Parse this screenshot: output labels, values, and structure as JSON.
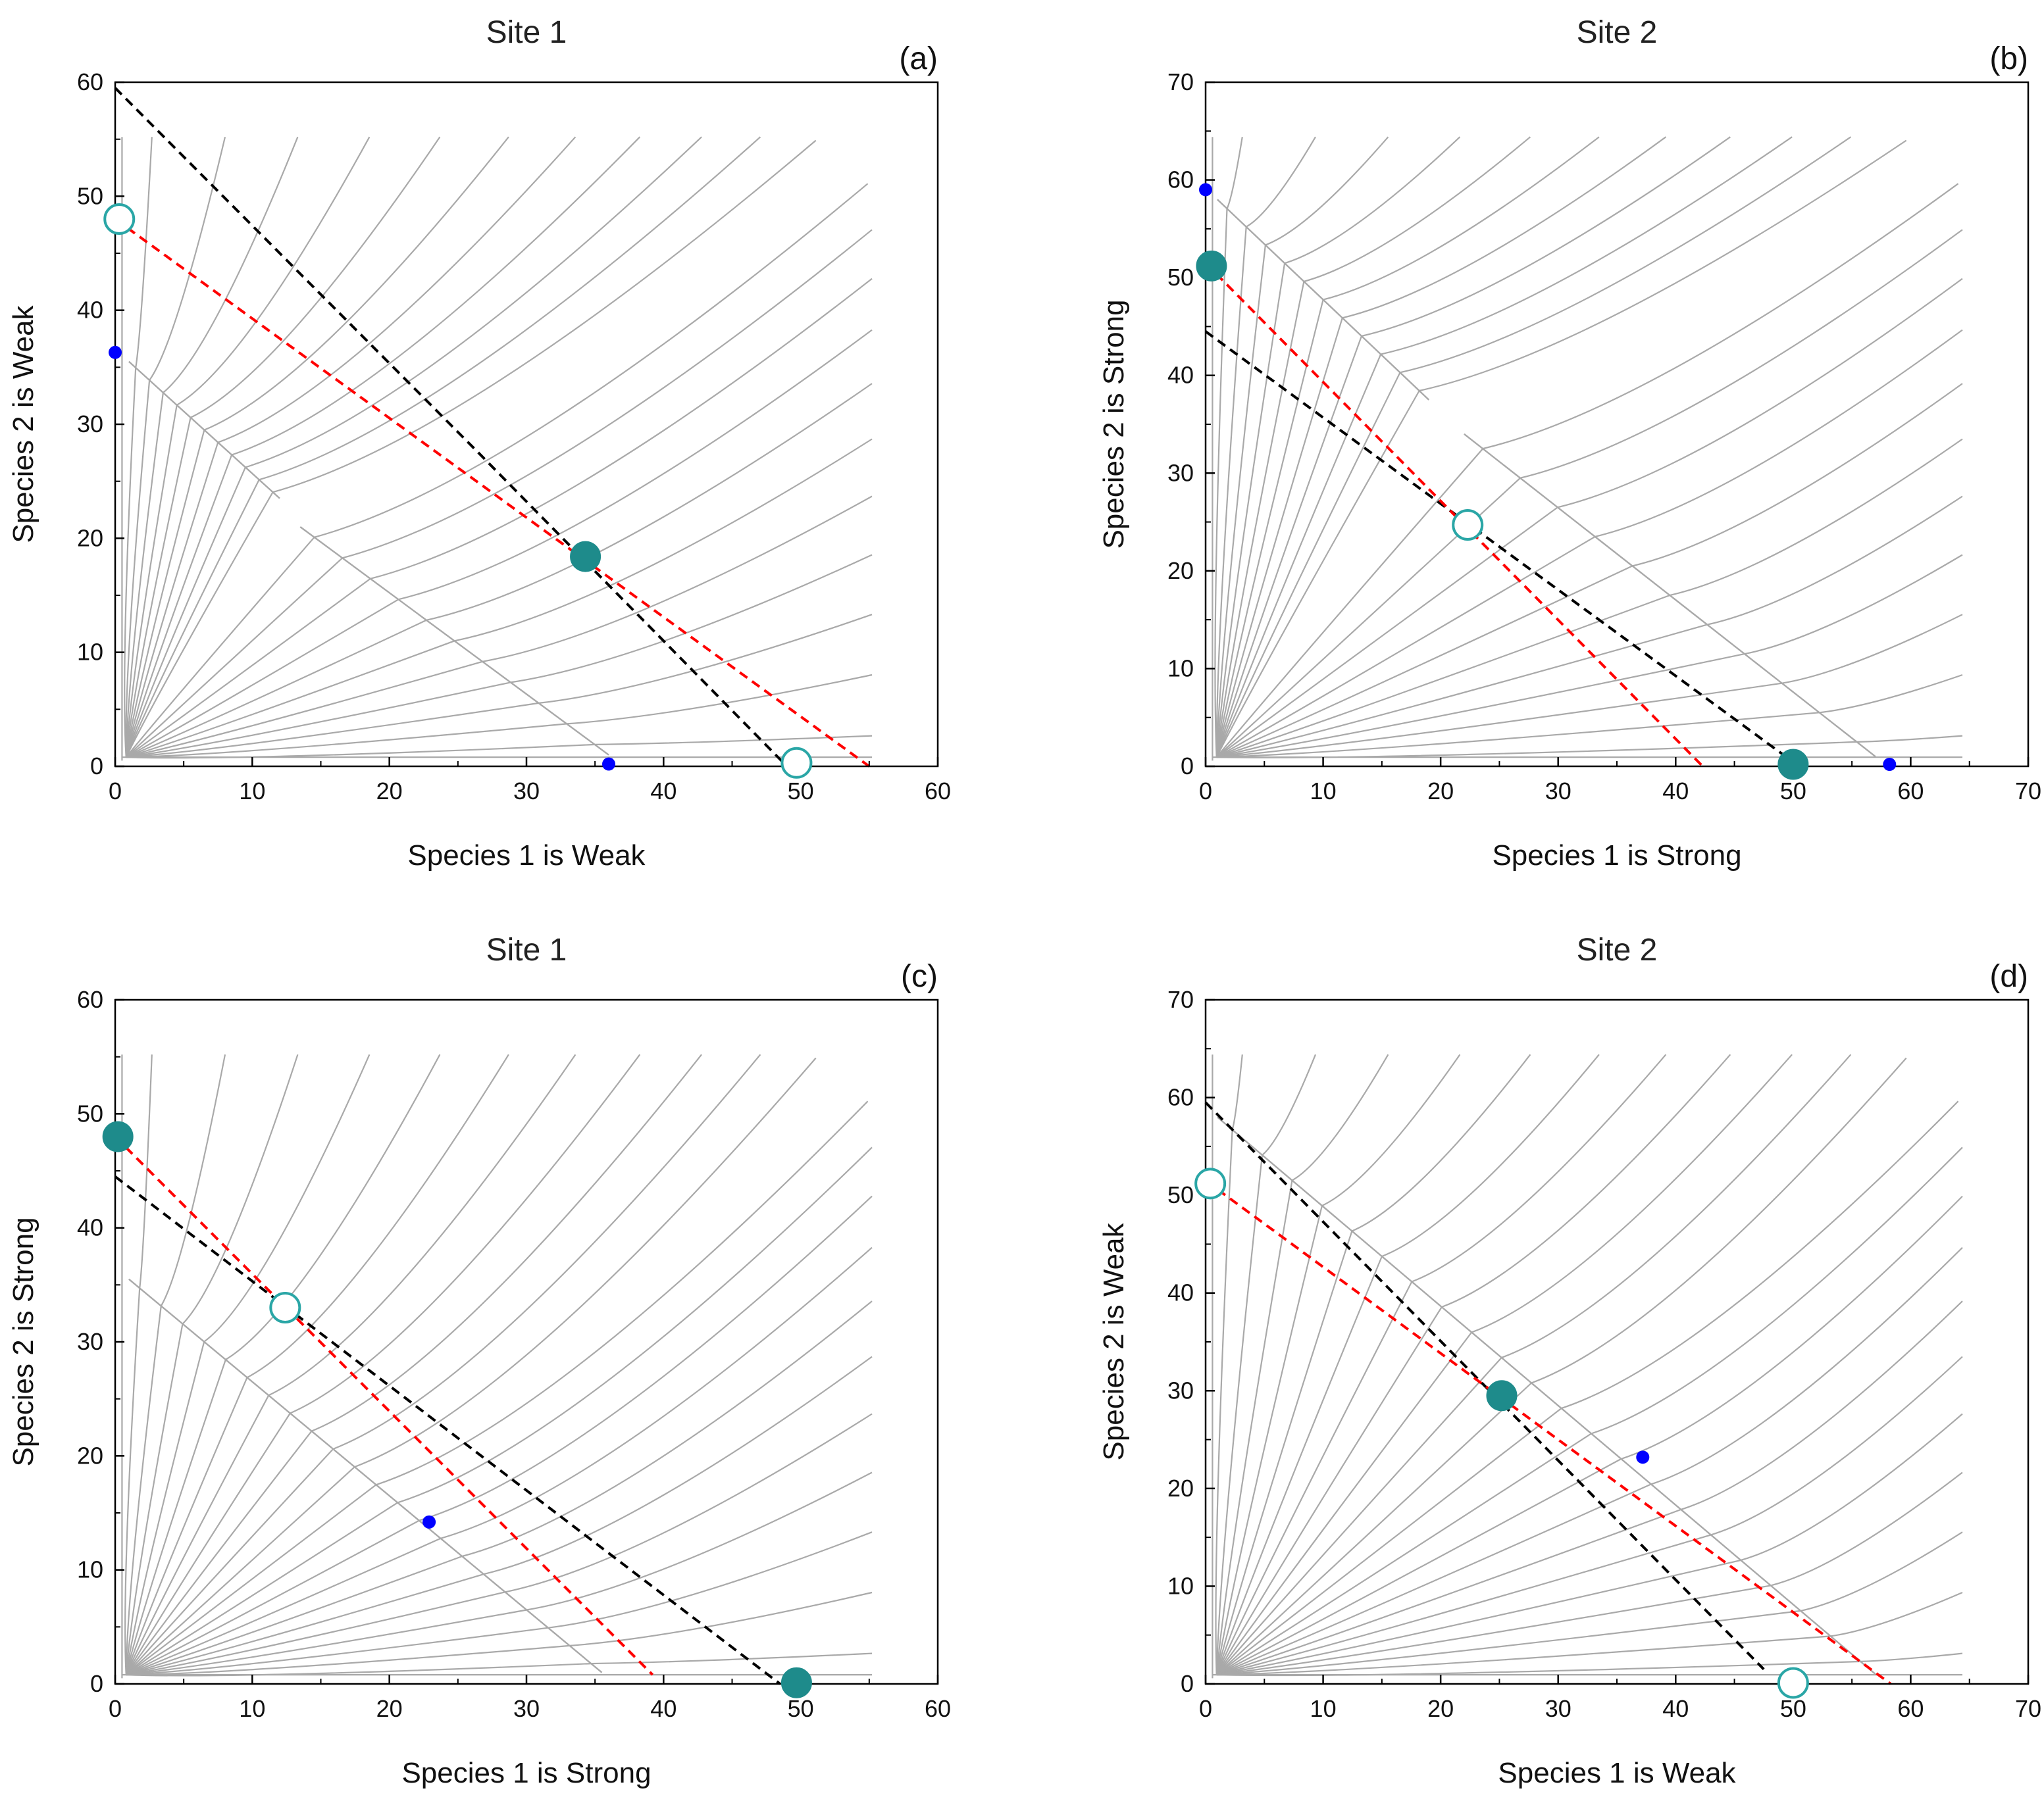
{
  "chart_data": [
    {
      "panel": "(a)",
      "type": "scatter",
      "title": "Site 1",
      "xlabel": "Species 1 is Weak",
      "ylabel": "Species 2 is Weak",
      "xlim": [
        0,
        60
      ],
      "ylim": [
        0,
        60
      ],
      "xticks": [
        0,
        10,
        20,
        30,
        40,
        50,
        60
      ],
      "yticks": [
        0,
        10,
        20,
        30,
        40,
        50,
        60
      ],
      "black_line": [
        [
          0,
          59.5
        ],
        [
          26.5,
          27.5
        ],
        [
          49,
          0
        ]
      ],
      "red_line": [
        [
          0,
          48
        ],
        [
          55,
          0
        ]
      ],
      "separatrix": [
        [
          1,
          35.5
        ],
        [
          12,
          23.5
        ]
      ],
      "separatrix2": [
        [
          13.5,
          21
        ],
        [
          36,
          1
        ]
      ],
      "points": {
        "filled": [
          [
            34.3,
            18.4
          ]
        ],
        "open": [
          [
            0.3,
            48
          ],
          [
            49.7,
            0.3
          ]
        ],
        "small": [
          [
            0,
            36.3
          ],
          [
            36,
            0.2
          ]
        ]
      }
    },
    {
      "panel": "(b)",
      "type": "scatter",
      "title": "Site 2",
      "xlabel": "Species 1 is Strong",
      "ylabel": "Species 2 is Strong",
      "xlim": [
        0,
        70
      ],
      "ylim": [
        0,
        70
      ],
      "xticks": [
        0,
        10,
        20,
        30,
        40,
        50,
        60,
        70
      ],
      "yticks": [
        0,
        10,
        20,
        30,
        40,
        50,
        60,
        70
      ],
      "black_line": [
        [
          0,
          44.5
        ],
        [
          50.5,
          0
        ]
      ],
      "red_line": [
        [
          0,
          51.5
        ],
        [
          42.3,
          0
        ]
      ],
      "separatrix": [
        [
          1,
          58
        ],
        [
          19,
          37.5
        ]
      ],
      "separatrix2": [
        [
          22,
          34
        ],
        [
          57,
          1
        ]
      ],
      "points": {
        "filled": [
          [
            0.5,
            51.2
          ],
          [
            50,
            0.2
          ]
        ],
        "open": [
          [
            22.3,
            24.7
          ]
        ],
        "small": [
          [
            0,
            59
          ],
          [
            58.2,
            0.2
          ]
        ]
      }
    },
    {
      "panel": "(c)",
      "type": "scatter",
      "title": "Site 1",
      "xlabel": "Species 1 is Strong",
      "ylabel": "Species 2 is Strong",
      "xlim": [
        0,
        60
      ],
      "ylim": [
        0,
        60
      ],
      "xticks": [
        0,
        10,
        20,
        30,
        40,
        50,
        60
      ],
      "yticks": [
        0,
        10,
        20,
        30,
        40,
        50,
        60
      ],
      "black_line": [
        [
          0,
          44.5
        ],
        [
          48.5,
          0
        ]
      ],
      "red_line": [
        [
          0,
          48
        ],
        [
          39.2,
          0.8
        ]
      ],
      "separatrix": [
        [
          1,
          35.5
        ],
        [
          35.5,
          1
        ]
      ],
      "separatrix2": null,
      "points": {
        "filled": [
          [
            0.2,
            48
          ],
          [
            49.7,
            0.1
          ]
        ],
        "open": [
          [
            12.4,
            33
          ]
        ],
        "small": [
          [
            22.9,
            14.2
          ]
        ]
      }
    },
    {
      "panel": "(d)",
      "type": "scatter",
      "title": "Site 2",
      "xlabel": "Species 1 is Weak",
      "ylabel": "Species 2 is Weak",
      "xlim": [
        0,
        70
      ],
      "ylim": [
        0,
        70
      ],
      "xticks": [
        0,
        10,
        20,
        30,
        40,
        50,
        60,
        70
      ],
      "yticks": [
        0,
        10,
        20,
        30,
        40,
        50,
        60,
        70
      ],
      "black_line": [
        [
          0,
          59.5
        ],
        [
          47.5,
          1.5
        ]
      ],
      "red_line": [
        [
          0,
          51.5
        ],
        [
          58.3,
          0
        ]
      ],
      "separatrix": [
        [
          1,
          58
        ],
        [
          57,
          1
        ]
      ],
      "separatrix2": null,
      "points": {
        "filled": [
          [
            25.2,
            29.5
          ]
        ],
        "open": [
          [
            0.4,
            51.2
          ],
          [
            50,
            0.1
          ]
        ],
        "small": [
          [
            37.2,
            23.2
          ]
        ]
      }
    }
  ],
  "colors": {
    "trajectory": "#a9a9a9",
    "black_line": "#000000",
    "red_line": "#ff0000",
    "filled_point": "#1e8b8b",
    "open_point": "#2aa6a6",
    "small_point": "#0000ff",
    "axis": "#000000"
  }
}
